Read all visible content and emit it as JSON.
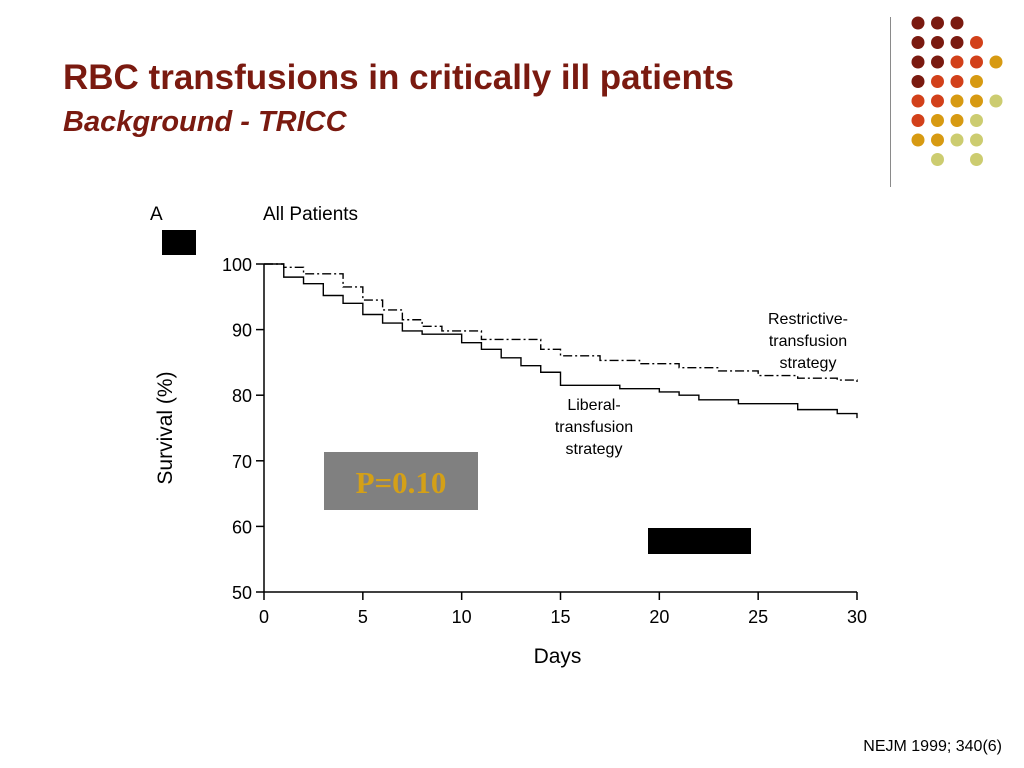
{
  "slide": {
    "title": "RBC transfusions in critically ill patients",
    "subtitle": "Background - TRICC",
    "citation": "NEJM 1999; 340(6)",
    "decor_colors": [
      "#7a1a10",
      "#d2401a",
      "#d79a12",
      "#cccc70"
    ]
  },
  "chart_data": {
    "type": "line",
    "panel_label": "A",
    "title": "All Patients",
    "xlabel": "Days",
    "ylabel": "Survival (%)",
    "xlim": [
      0,
      30
    ],
    "ylim": [
      50,
      100
    ],
    "xticks": [
      0,
      5,
      10,
      15,
      20,
      25,
      30
    ],
    "yticks": [
      50,
      60,
      70,
      80,
      90,
      100
    ],
    "grid": false,
    "series": [
      {
        "name": "Restrictive-transfusion strategy",
        "style": "dash-dot",
        "x": [
          0,
          1,
          2,
          4,
          5,
          6,
          7,
          8,
          9,
          11,
          14,
          15,
          17,
          19,
          21,
          23,
          25,
          27,
          29,
          30
        ],
        "y": [
          100,
          99.5,
          98.5,
          96.5,
          94.5,
          93.0,
          91.5,
          90.5,
          89.8,
          88.5,
          87.0,
          86.0,
          85.3,
          84.8,
          84.2,
          83.7,
          83.0,
          82.6,
          82.3,
          82.0
        ]
      },
      {
        "name": "Liberal-transfusion strategy",
        "style": "solid",
        "x": [
          0,
          1,
          2,
          3,
          4,
          5,
          6,
          7,
          8,
          10,
          11,
          12,
          13,
          14,
          15,
          18,
          20,
          21,
          22,
          24,
          27,
          29,
          30
        ],
        "y": [
          100,
          98.0,
          97.0,
          95.2,
          94.0,
          92.3,
          91.0,
          89.8,
          89.3,
          88.0,
          87.0,
          85.7,
          84.5,
          83.5,
          81.5,
          81.0,
          80.5,
          80.0,
          79.3,
          78.7,
          77.8,
          77.2,
          76.5
        ]
      }
    ],
    "annotations": {
      "restrictive_label": [
        "Restrictive-",
        "transfusion",
        "strategy"
      ],
      "liberal_label": [
        "Liberal-",
        "transfusion",
        "strategy"
      ],
      "p_value": "P=0.10",
      "p_box_color": "#808080",
      "p_text_color": "#d4a017"
    }
  }
}
